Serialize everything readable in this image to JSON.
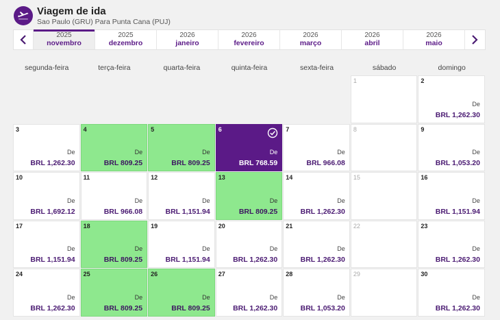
{
  "header": {
    "title": "Viagem de ida",
    "subtitle": "Sao Paulo (GRU) Para Punta Cana (PUJ)",
    "icon": "plane-icon"
  },
  "months": [
    {
      "year": "2025",
      "name": "novembro",
      "active": true
    },
    {
      "year": "2025",
      "name": "dezembro"
    },
    {
      "year": "2026",
      "name": "janeiro"
    },
    {
      "year": "2026",
      "name": "fevereiro"
    },
    {
      "year": "2026",
      "name": "março"
    },
    {
      "year": "2026",
      "name": "abril"
    },
    {
      "year": "2026",
      "name": "maio"
    }
  ],
  "weekdays": [
    "segunda-feira",
    "terça-feira",
    "quarta-feira",
    "quinta-feira",
    "sexta-feira",
    "sábado",
    "domingo"
  ],
  "from_label": "De",
  "colors": {
    "brand": "#5b1a87",
    "cheap": "#8ee88e"
  },
  "days": [
    {
      "day": "",
      "status": "empty"
    },
    {
      "day": "",
      "status": "empty"
    },
    {
      "day": "",
      "status": "empty"
    },
    {
      "day": "",
      "status": "empty"
    },
    {
      "day": "",
      "status": "empty"
    },
    {
      "day": "1",
      "status": "nodata"
    },
    {
      "day": "2",
      "status": "normal",
      "price": "BRL 1,262.30"
    },
    {
      "day": "3",
      "status": "normal",
      "price": "BRL 1,262.30"
    },
    {
      "day": "4",
      "status": "cheap",
      "price": "BRL 809.25"
    },
    {
      "day": "5",
      "status": "cheap",
      "price": "BRL 809.25"
    },
    {
      "day": "6",
      "status": "selected",
      "price": "BRL 768.59"
    },
    {
      "day": "7",
      "status": "normal",
      "price": "BRL 966.08"
    },
    {
      "day": "8",
      "status": "nodata"
    },
    {
      "day": "9",
      "status": "normal",
      "price": "BRL 1,053.20"
    },
    {
      "day": "10",
      "status": "normal",
      "price": "BRL 1,692.12"
    },
    {
      "day": "11",
      "status": "normal",
      "price": "BRL 966.08"
    },
    {
      "day": "12",
      "status": "normal",
      "price": "BRL 1,151.94"
    },
    {
      "day": "13",
      "status": "cheap",
      "price": "BRL 809.25"
    },
    {
      "day": "14",
      "status": "normal",
      "price": "BRL 1,262.30"
    },
    {
      "day": "15",
      "status": "nodata"
    },
    {
      "day": "16",
      "status": "normal",
      "price": "BRL 1,151.94"
    },
    {
      "day": "17",
      "status": "normal",
      "price": "BRL 1,151.94"
    },
    {
      "day": "18",
      "status": "cheap",
      "price": "BRL 809.25"
    },
    {
      "day": "19",
      "status": "normal",
      "price": "BRL 1,151.94"
    },
    {
      "day": "20",
      "status": "normal",
      "price": "BRL 1,262.30"
    },
    {
      "day": "21",
      "status": "normal",
      "price": "BRL 1,262.30"
    },
    {
      "day": "22",
      "status": "nodata"
    },
    {
      "day": "23",
      "status": "normal",
      "price": "BRL 1,262.30"
    },
    {
      "day": "24",
      "status": "normal",
      "price": "BRL 1,262.30"
    },
    {
      "day": "25",
      "status": "cheap",
      "price": "BRL 809.25"
    },
    {
      "day": "26",
      "status": "cheap",
      "price": "BRL 809.25"
    },
    {
      "day": "27",
      "status": "normal",
      "price": "BRL 1,262.30"
    },
    {
      "day": "28",
      "status": "normal",
      "price": "BRL 1,053.20"
    },
    {
      "day": "29",
      "status": "nodata"
    },
    {
      "day": "30",
      "status": "normal",
      "price": "BRL 1,262.30"
    }
  ]
}
